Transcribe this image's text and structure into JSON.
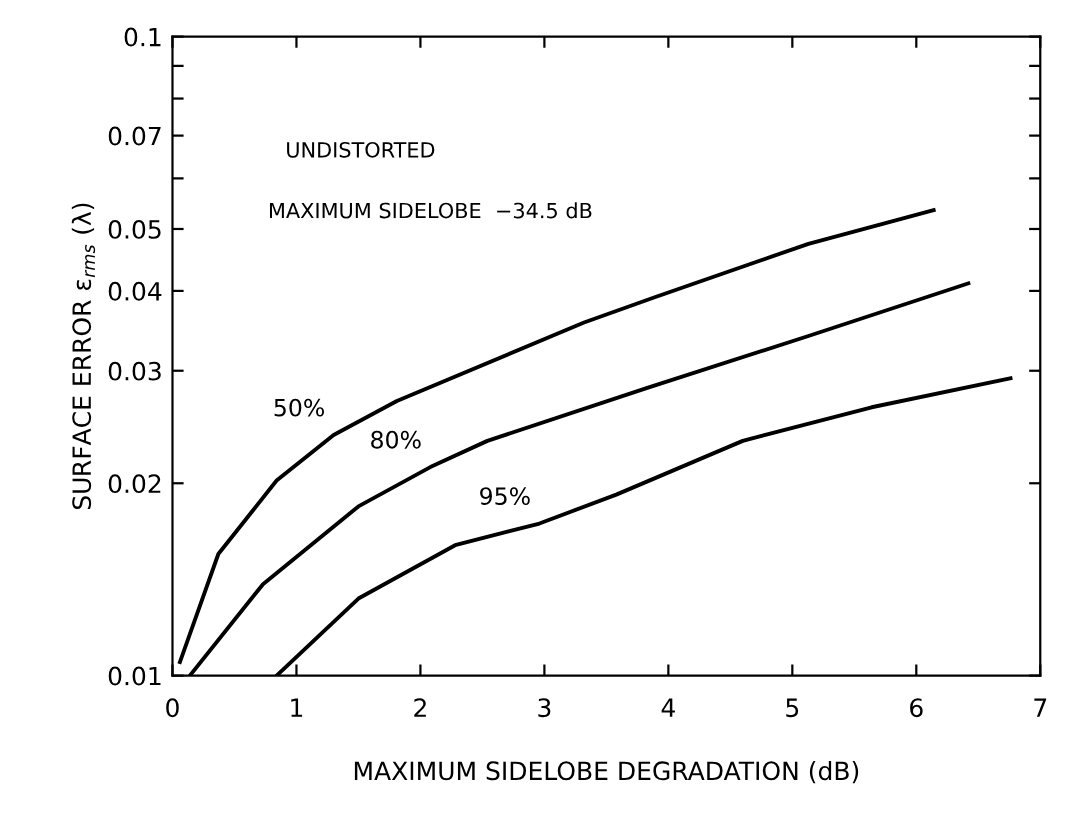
{
  "chart_data": {
    "type": "line",
    "xlabel": "MAXIMUM SIDELOBE DEGRADATION (dB)",
    "ylabel": "SURFACE ERROR ε$_{rms}$ (λ)",
    "log": "y",
    "xlim": [
      0,
      7
    ],
    "xticks": [
      0,
      1,
      2,
      3,
      4,
      5,
      6,
      7
    ],
    "ylim": [
      0.01,
      0.1
    ],
    "yticks": [
      0.01,
      0.02,
      0.03,
      0.04,
      0.05,
      {
        "value": 0.06,
        "label": null
      },
      0.07,
      {
        "value": 0.08,
        "label": null
      },
      {
        "value": 0.09,
        "label": null
      },
      0.1
    ],
    "grid": false,
    "marker": "none",
    "line_style": "solid",
    "series": [
      {
        "color": "#000000",
        "x": [
          0.06,
          0.37,
          0.84,
          1.3,
          1.81,
          3.32,
          3.89,
          5.13,
          6.14
        ],
        "values": [
          0.0105,
          0.0155,
          0.0202,
          0.0238,
          0.0269,
          0.0357,
          0.0391,
          0.0474,
          0.0535
        ]
      },
      {
        "color": "#000000",
        "x": [
          0.14,
          0.73,
          1.5,
          2.08,
          2.54,
          3.83,
          5.13,
          6.42
        ],
        "values": [
          0.01,
          0.0139,
          0.0184,
          0.0212,
          0.0233,
          0.0282,
          0.034,
          0.0411
        ]
      },
      {
        "color": "#000000",
        "x": [
          0.84,
          1.5,
          2.28,
          2.96,
          3.58,
          4.6,
          5.64,
          6.76
        ],
        "values": [
          0.01,
          0.0132,
          0.016,
          0.0173,
          0.0192,
          0.0233,
          0.0263,
          0.0292
        ]
      }
    ],
    "annotations": [
      "UNDISTORTED",
      "MAXIMUM SIDELOBE  −34.5 dB",
      {
        "text": "50%",
        "x": 1.3,
        "y": 0.0238
      },
      {
        "text": "80%",
        "x": 2.08,
        "y": 0.0212
      },
      {
        "text": "95%",
        "x": 2.96,
        "y": 0.0173
      }
    ]
  }
}
